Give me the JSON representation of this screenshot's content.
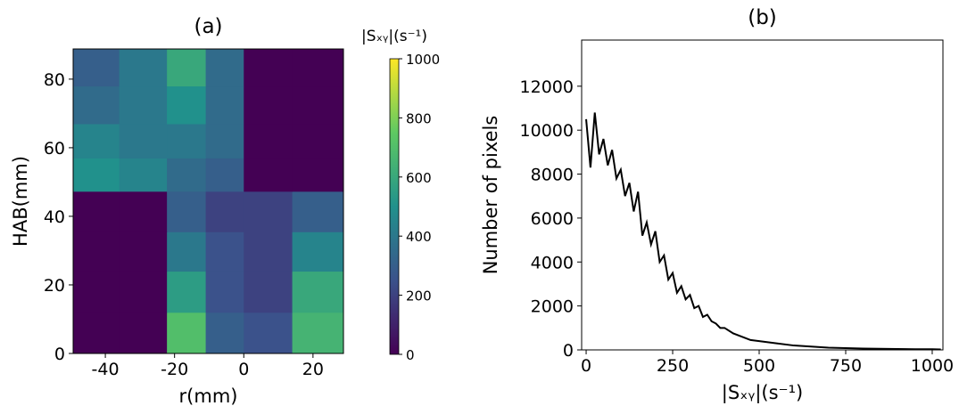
{
  "chart_data": [
    {
      "type": "heatmap",
      "title": "(a)",
      "xlabel": "r(mm)",
      "ylabel": "HAB(mm)",
      "xlim": [
        -49.3,
        28.8
      ],
      "ylim": [
        0,
        88.8
      ],
      "xticks": [
        -40,
        -20,
        0,
        20
      ],
      "yticks": [
        0,
        20,
        40,
        60,
        80
      ],
      "x_bins": [
        -49.3,
        -36,
        -22.2,
        -11,
        0,
        14,
        28.8
      ],
      "y_bins": [
        0,
        12,
        24,
        35.5,
        47.3,
        57,
        67,
        78,
        88.8
      ],
      "z": [
        [
          0,
          0,
          700,
          300,
          250,
          650
        ],
        [
          0,
          0,
          550,
          250,
          200,
          600
        ],
        [
          0,
          0,
          400,
          250,
          200,
          450
        ],
        [
          0,
          0,
          300,
          200,
          200,
          300
        ],
        [
          500,
          450,
          350,
          300,
          0,
          0
        ],
        [
          450,
          400,
          400,
          350,
          0,
          0
        ],
        [
          350,
          400,
          500,
          350,
          0,
          0
        ],
        [
          300,
          400,
          600,
          350,
          0,
          0
        ]
      ],
      "colormap": [
        "#440154",
        "#3b528b",
        "#21918c",
        "#5ec962",
        "#fde725"
      ],
      "colorbar_label": "|Sₓᵧ|(s⁻¹)",
      "clim": [
        0,
        1000
      ],
      "cticks": [
        0,
        200,
        400,
        600,
        800,
        1000
      ]
    },
    {
      "type": "line",
      "title": "(b)",
      "xlabel": "|Sₓᵧ|(s⁻¹)",
      "ylabel": "Number of pixels",
      "color": "#000000",
      "xlim": [
        -13,
        1031
      ],
      "ylim": [
        0,
        14100
      ],
      "xticks": [
        0,
        250,
        500,
        750,
        1000
      ],
      "yticks": [
        0,
        2000,
        4000,
        6000,
        8000,
        10000,
        12000
      ],
      "x": [
        0,
        12.5,
        25,
        37.5,
        50,
        62.5,
        75,
        87.5,
        100,
        112.5,
        125,
        137.5,
        150,
        162.5,
        175,
        187.5,
        200,
        212.5,
        225,
        237.5,
        250,
        262.5,
        275,
        287.5,
        300,
        312.5,
        325,
        337.5,
        350,
        362.5,
        375,
        387.5,
        400,
        425,
        450,
        475,
        500,
        550,
        600,
        650,
        700,
        750,
        800,
        850,
        900,
        950,
        1000,
        1025
      ],
      "values": [
        10500,
        8300,
        10800,
        8900,
        9600,
        8400,
        9100,
        7800,
        8200,
        7000,
        7600,
        6300,
        7200,
        5200,
        5800,
        4800,
        5400,
        4000,
        4300,
        3200,
        3500,
        2600,
        2900,
        2300,
        2500,
        1900,
        2000,
        1500,
        1600,
        1300,
        1200,
        1000,
        1000,
        750,
        600,
        450,
        400,
        300,
        200,
        150,
        100,
        80,
        60,
        50,
        40,
        30,
        30,
        20
      ]
    }
  ]
}
